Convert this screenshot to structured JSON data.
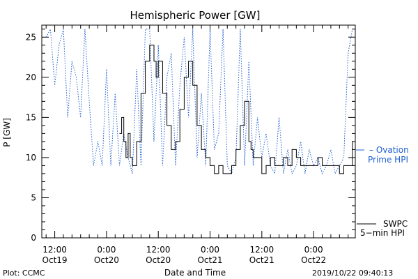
{
  "footer": {
    "credit": "Plot: CCMC",
    "timestamp": "2019/10/22 09:40:13"
  },
  "chart_data": {
    "type": "line",
    "title": "Hemispheric Power [GW]",
    "xlabel": "Date and Time",
    "ylabel": "P [GW]",
    "ylim": [
      0,
      26.5
    ],
    "yticks": [
      0,
      5,
      10,
      15,
      20,
      25
    ],
    "xlim_hours": "2019-10-19 09:00 to 2019-10-22 09:40",
    "x_ticks": [
      {
        "time": "2019-10-19 12:00",
        "line1": "12:00",
        "line2": "Oct19"
      },
      {
        "time": "2019-10-20 00:00",
        "line1": "0:00",
        "line2": "Oct20"
      },
      {
        "time": "2019-10-20 12:00",
        "line1": "12:00",
        "line2": "Oct20"
      },
      {
        "time": "2019-10-21 00:00",
        "line1": "0:00",
        "line2": "Oct21"
      },
      {
        "time": "2019-10-21 12:00",
        "line1": "12:00",
        "line2": "Oct21"
      },
      {
        "time": "2019-10-22 00:00",
        "line1": "0:00",
        "line2": "Oct22"
      }
    ],
    "colors": {
      "ovation": "#1f5fcf",
      "swpc": "#000000"
    },
    "series": [
      {
        "name": "Ovation Prime HPI",
        "legend": [
          "– Ovation",
          "Prime HPI"
        ],
        "style": "dotted",
        "x": [
          "2019-10-19 10:00",
          "2019-10-19 11:00",
          "2019-10-19 12:00",
          "2019-10-19 13:00",
          "2019-10-19 14:00",
          "2019-10-19 15:00",
          "2019-10-19 16:00",
          "2019-10-19 17:00",
          "2019-10-19 18:00",
          "2019-10-19 19:00",
          "2019-10-19 20:00",
          "2019-10-19 21:00",
          "2019-10-19 22:00",
          "2019-10-19 23:00",
          "2019-10-20 00:00",
          "2019-10-20 01:00",
          "2019-10-20 02:00",
          "2019-10-20 03:00",
          "2019-10-20 04:00",
          "2019-10-20 05:00",
          "2019-10-20 06:00",
          "2019-10-20 07:00",
          "2019-10-20 08:00",
          "2019-10-20 09:00",
          "2019-10-20 10:00",
          "2019-10-20 11:00",
          "2019-10-20 12:00",
          "2019-10-20 13:00",
          "2019-10-20 14:00",
          "2019-10-20 15:00",
          "2019-10-20 16:00",
          "2019-10-20 17:00",
          "2019-10-20 18:00",
          "2019-10-20 19:00",
          "2019-10-20 20:00",
          "2019-10-20 21:00",
          "2019-10-20 22:00",
          "2019-10-20 23:00",
          "2019-10-21 00:00",
          "2019-10-21 01:00",
          "2019-10-21 02:00",
          "2019-10-21 03:00",
          "2019-10-21 04:00",
          "2019-10-21 05:00",
          "2019-10-21 06:00",
          "2019-10-21 07:00",
          "2019-10-21 08:00",
          "2019-10-21 09:00",
          "2019-10-21 10:00",
          "2019-10-21 11:00",
          "2019-10-21 12:00",
          "2019-10-21 13:00",
          "2019-10-21 14:00",
          "2019-10-21 15:00",
          "2019-10-21 16:00",
          "2019-10-21 17:00",
          "2019-10-21 18:00",
          "2019-10-21 19:00",
          "2019-10-21 20:00",
          "2019-10-21 21:00",
          "2019-10-21 22:00",
          "2019-10-21 23:00",
          "2019-10-22 00:00",
          "2019-10-22 01:00",
          "2019-10-22 02:00",
          "2019-10-22 03:00",
          "2019-10-22 04:00",
          "2019-10-22 05:00",
          "2019-10-22 06:00",
          "2019-10-22 07:00",
          "2019-10-22 08:00",
          "2019-10-22 09:00"
        ],
        "values": [
          25,
          26,
          19,
          24,
          26,
          15,
          22,
          20,
          15,
          26,
          17,
          9,
          12,
          9,
          21,
          9,
          18,
          9,
          13,
          10,
          8,
          21,
          9,
          26,
          26,
          12,
          24,
          9,
          20,
          23,
          9,
          19,
          25,
          15,
          26,
          10,
          18,
          9,
          26,
          11,
          13,
          26,
          9,
          8,
          10,
          26,
          9,
          22,
          9,
          15,
          10,
          13,
          9,
          8,
          15,
          8,
          11,
          8,
          9,
          12,
          8,
          11,
          9,
          10,
          8,
          9,
          11,
          8,
          9,
          10,
          23,
          26
        ]
      },
      {
        "name": "SWPC 5-min HPI",
        "legend": [
          "SWPC",
          "5−min HPI"
        ],
        "style": "solid",
        "x": [
          "2019-10-20 03:00",
          "2019-10-20 03:30",
          "2019-10-20 04:00",
          "2019-10-20 04:30",
          "2019-10-20 05:00",
          "2019-10-20 05:30",
          "2019-10-20 06:00",
          "2019-10-20 07:00",
          "2019-10-20 08:00",
          "2019-10-20 09:00",
          "2019-10-20 10:00",
          "2019-10-20 11:00",
          "2019-10-20 11:30",
          "2019-10-20 12:00",
          "2019-10-20 13:00",
          "2019-10-20 14:00",
          "2019-10-20 15:00",
          "2019-10-20 16:00",
          "2019-10-20 17:00",
          "2019-10-20 18:00",
          "2019-10-20 19:00",
          "2019-10-20 20:00",
          "2019-10-20 21:00",
          "2019-10-20 22:00",
          "2019-10-20 23:00",
          "2019-10-21 00:00",
          "2019-10-21 01:00",
          "2019-10-21 02:00",
          "2019-10-21 03:00",
          "2019-10-21 04:00",
          "2019-10-21 05:00",
          "2019-10-21 06:00",
          "2019-10-21 07:00",
          "2019-10-21 08:00",
          "2019-10-21 09:00",
          "2019-10-21 09:30",
          "2019-10-21 10:00",
          "2019-10-21 11:00",
          "2019-10-21 12:00",
          "2019-10-21 13:00",
          "2019-10-21 14:00",
          "2019-10-21 15:00",
          "2019-10-21 16:00",
          "2019-10-21 17:00",
          "2019-10-21 18:00",
          "2019-10-21 19:00",
          "2019-10-21 20:00",
          "2019-10-21 21:00",
          "2019-10-21 22:00",
          "2019-10-21 23:00",
          "2019-10-22 00:00",
          "2019-10-22 01:00",
          "2019-10-22 02:00",
          "2019-10-22 03:00",
          "2019-10-22 04:00",
          "2019-10-22 05:00",
          "2019-10-22 06:00",
          "2019-10-22 07:00",
          "2019-10-22 08:00",
          "2019-10-22 09:00"
        ],
        "values": [
          13,
          15,
          12,
          10,
          13,
          10,
          9,
          12,
          18,
          22,
          24,
          22,
          20,
          22,
          18,
          14,
          11,
          12,
          16,
          20,
          22,
          19,
          14,
          11,
          10,
          9,
          8,
          9,
          8,
          8,
          9,
          11,
          14,
          17,
          12,
          11,
          10,
          10,
          8,
          9,
          10,
          9,
          9,
          10,
          9,
          11,
          10,
          9,
          9,
          9,
          9,
          10,
          9,
          9,
          9,
          9,
          8,
          9,
          9,
          12
        ]
      }
    ]
  }
}
